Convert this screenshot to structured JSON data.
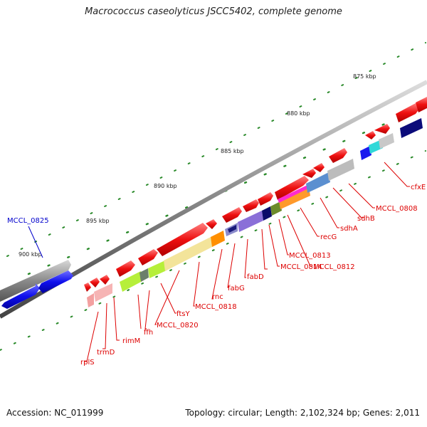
{
  "title": "Macrococcus caseolyticus JSCC5402, complete genome",
  "footer": {
    "accession": "Accession: NC_011999",
    "topology": "Topology: circular; Length: 2,102,324 bp; Genes: 2,011"
  },
  "ticks": [
    "875 kbp",
    "880 kbp",
    "885 kbp",
    "890 kbp",
    "895 kbp",
    "900 kbp"
  ],
  "genes": [
    {
      "name": "cfxE",
      "color": "red"
    },
    {
      "name": "MCCL_0808",
      "color": "red"
    },
    {
      "name": "sdhB",
      "color": "red"
    },
    {
      "name": "sdhA",
      "color": "red"
    },
    {
      "name": "recG",
      "color": "red"
    },
    {
      "name": "MCCL_0812",
      "color": "red"
    },
    {
      "name": "MCCL_0813",
      "color": "red"
    },
    {
      "name": "MCCL_0814",
      "color": "red"
    },
    {
      "name": "fabD",
      "color": "red"
    },
    {
      "name": "fabG",
      "color": "red"
    },
    {
      "name": "rnc",
      "color": "red"
    },
    {
      "name": "MCCL_0818",
      "color": "red"
    },
    {
      "name": "ftsY",
      "color": "red"
    },
    {
      "name": "MCCL_0820",
      "color": "red"
    },
    {
      "name": "ffh",
      "color": "red"
    },
    {
      "name": "rimM",
      "color": "red"
    },
    {
      "name": "trmD",
      "color": "red"
    },
    {
      "name": "rplS",
      "color": "red"
    },
    {
      "name": "MCCL_0825",
      "color": "blue"
    }
  ],
  "colors": {
    "forward_gene": "#ee1111",
    "reverse_gene": "#1414e6",
    "label_red": "#dd0000",
    "label_blue": "#0000cc",
    "backbone": "#8a8a8a",
    "gc_dots": "#2a8a2a"
  }
}
